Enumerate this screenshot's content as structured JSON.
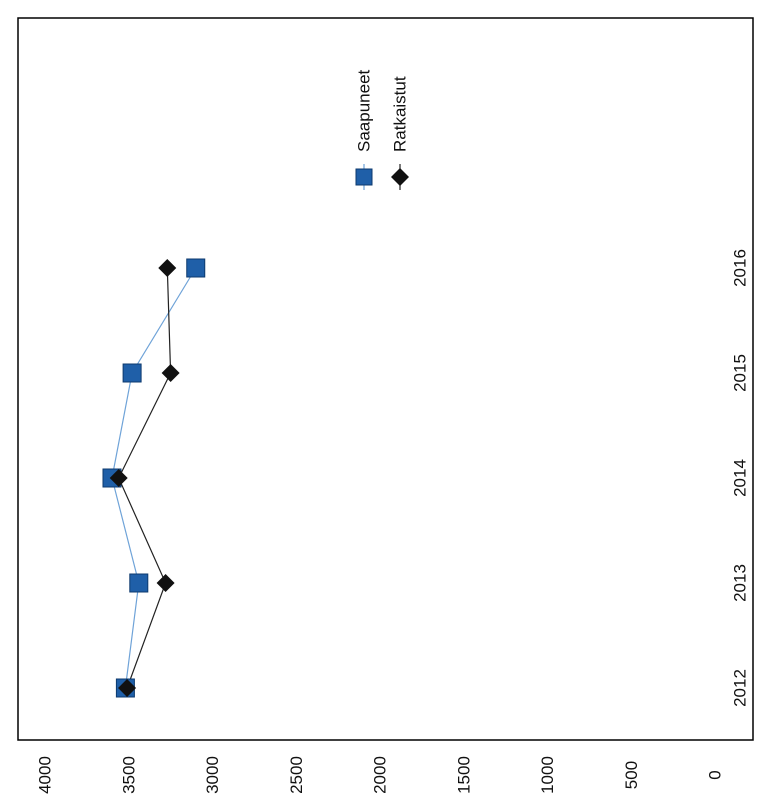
{
  "chart_data": {
    "type": "line",
    "orientation": "rotated-90-clockwise",
    "categories": [
      "2012",
      "2013",
      "2014",
      "2015",
      "2016"
    ],
    "series": [
      {
        "name": "Saapuneet",
        "marker": "square",
        "color": "#1f5fa8",
        "line_color": "#6fa3d8",
        "values": [
          3520,
          3440,
          3600,
          3480,
          3100
        ]
      },
      {
        "name": "Ratkaistut",
        "marker": "diamond",
        "color": "#111111",
        "line_color": "#222222",
        "values": [
          3510,
          3280,
          3560,
          3250,
          3270
        ]
      }
    ],
    "y_ticks": [
      "0",
      "500",
      "1000",
      "1500",
      "2000",
      "2500",
      "3000",
      "3500",
      "4000"
    ],
    "ylim": [
      0,
      4000
    ],
    "grid": false,
    "legend": "top-right"
  }
}
